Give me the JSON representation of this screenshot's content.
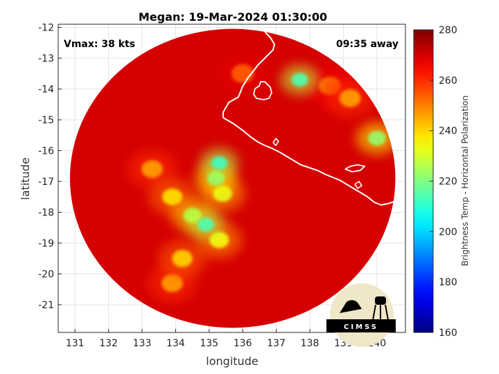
{
  "chart_data": {
    "type": "heatmap",
    "title": "Megan: 19-Mar-2024 01:30:00",
    "xlabel": "longitude",
    "ylabel": "latitude",
    "xlim": [
      130.5,
      140.85
    ],
    "ylim": [
      -21.9,
      -11.9
    ],
    "x_ticks": [
      131,
      132,
      133,
      134,
      135,
      136,
      137,
      138,
      139,
      140
    ],
    "y_ticks": [
      -12,
      -13,
      -14,
      -15,
      -16,
      -17,
      -18,
      -19,
      -20,
      -21
    ],
    "grid": true,
    "colorbar": {
      "label": "Brightness Temp - Horizontal Polarization",
      "min": 160,
      "max": 280,
      "ticks": [
        160,
        180,
        200,
        220,
        240,
        260,
        280
      ],
      "colormap": "jet"
    },
    "background_value": 270,
    "scan_center": [
      135.7,
      -16.9
    ],
    "scan_radius_deg": 4.85,
    "features": [
      {
        "lon": 135.3,
        "lat": -16.4,
        "value": 212
      },
      {
        "lon": 135.2,
        "lat": -16.9,
        "value": 222
      },
      {
        "lon": 135.4,
        "lat": -17.4,
        "value": 232
      },
      {
        "lon": 134.9,
        "lat": -18.4,
        "value": 214
      },
      {
        "lon": 134.5,
        "lat": -18.1,
        "value": 226
      },
      {
        "lon": 135.3,
        "lat": -18.9,
        "value": 234
      },
      {
        "lon": 133.9,
        "lat": -17.5,
        "value": 238
      },
      {
        "lon": 133.3,
        "lat": -16.6,
        "value": 246
      },
      {
        "lon": 134.2,
        "lat": -19.5,
        "value": 240
      },
      {
        "lon": 133.9,
        "lat": -20.3,
        "value": 246
      },
      {
        "lon": 137.7,
        "lat": -13.7,
        "value": 214
      },
      {
        "lon": 140.0,
        "lat": -15.6,
        "value": 222
      },
      {
        "lon": 139.2,
        "lat": -14.3,
        "value": 246
      },
      {
        "lon": 138.6,
        "lat": -13.9,
        "value": 252
      },
      {
        "lon": 136.0,
        "lat": -13.5,
        "value": 254
      }
    ]
  },
  "annotations": {
    "vmax": "Vmax: 38 kts",
    "time_away": "09:35 away"
  },
  "logo": {
    "text": "CIMSS"
  }
}
